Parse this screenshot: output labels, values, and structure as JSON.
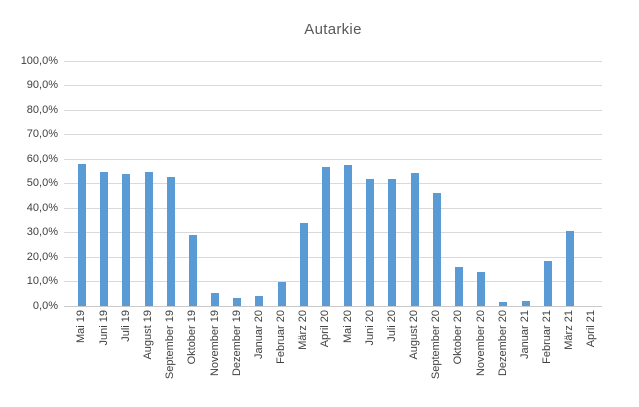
{
  "chart_data": {
    "type": "bar",
    "title": "Autarkie",
    "categories": [
      "Mai 19",
      "Juni 19",
      "Juli 19",
      "August 19",
      "September 19",
      "Oktober 19",
      "November 19",
      "Dezember 19",
      "Januar 20",
      "Februar 20",
      "März 20",
      "April 20",
      "Mai 20",
      "Juni 20",
      "Juli 20",
      "August 20",
      "September 20",
      "Oktober 20",
      "November 20",
      "Dezember 20",
      "Januar 21",
      "Februar 21",
      "März 21",
      "April 21"
    ],
    "values": [
      57.8,
      54.6,
      53.6,
      54.6,
      52.4,
      28.9,
      5.2,
      3.4,
      4.2,
      9.8,
      33.7,
      56.5,
      57.6,
      51.9,
      51.9,
      54.3,
      45.9,
      15.9,
      13.8,
      1.8,
      2.2,
      18.5,
      30.7,
      0
    ],
    "xlabel": "",
    "ylabel": "",
    "ylim": [
      0,
      100
    ],
    "ytick_step": 10,
    "ytick_labels": [
      "0,0%",
      "10,0%",
      "20,0%",
      "30,0%",
      "40,0%",
      "50,0%",
      "60,0%",
      "70,0%",
      "80,0%",
      "90,0%",
      "100,0%"
    ],
    "grid": true,
    "legend": false,
    "bar_color": "#5B9BD5",
    "gridline_color": "#D9D9D9",
    "axis_line_color": "#C9C9C9",
    "tick_text_color": "#404040",
    "title_color": "#595959",
    "background": "#FFFFFF"
  }
}
